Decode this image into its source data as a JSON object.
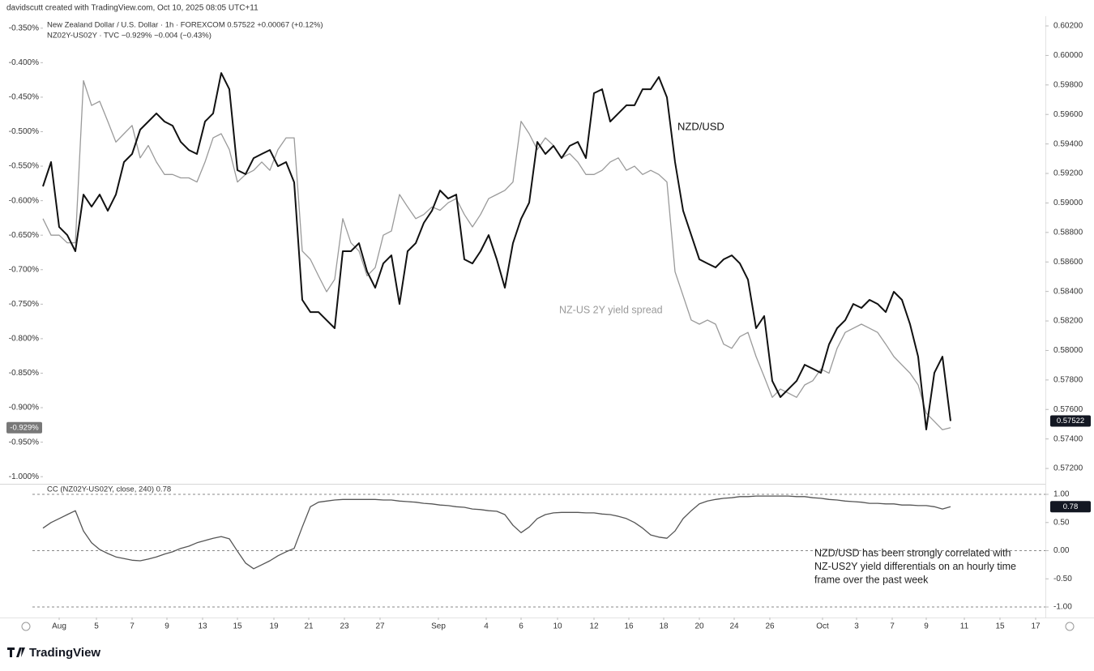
{
  "credit": "davidscutt created with TradingView.com, Oct 10, 2025 08:05 UTC+11",
  "brand": "TradingView",
  "chart_data": [
    {
      "type": "line",
      "legend_lines": [
        "New Zealand Dollar / U.S. Dollar · 1h · FOREXCOM  0.57522  +0.00067 (+0.12%)",
        "NZ02Y-US02Y · TVC  −0.929%  −0.004 (−0.43%)"
      ],
      "xlim": [
        -1.3,
        123.7
      ],
      "xticks": [
        {
          "value": 2,
          "label": "Aug"
        },
        {
          "value": 6.6,
          "label": "5"
        },
        {
          "value": 11,
          "label": "7"
        },
        {
          "value": 15.3,
          "label": "9"
        },
        {
          "value": 19.7,
          "label": "13"
        },
        {
          "value": 24,
          "label": "15"
        },
        {
          "value": 28.5,
          "label": "19"
        },
        {
          "value": 32.8,
          "label": "21"
        },
        {
          "value": 37.2,
          "label": "23"
        },
        {
          "value": 41.6,
          "label": "27"
        },
        {
          "value": 48.8,
          "label": "Sep"
        },
        {
          "value": 54.7,
          "label": "4"
        },
        {
          "value": 59,
          "label": "6"
        },
        {
          "value": 63.5,
          "label": "10"
        },
        {
          "value": 68,
          "label": "12"
        },
        {
          "value": 72.3,
          "label": "16"
        },
        {
          "value": 76.6,
          "label": "18"
        },
        {
          "value": 81,
          "label": "20"
        },
        {
          "value": 85.3,
          "label": "24"
        },
        {
          "value": 89.7,
          "label": "26"
        },
        {
          "value": 96.2,
          "label": "Oct"
        },
        {
          "value": 100.4,
          "label": "3"
        },
        {
          "value": 104.8,
          "label": "7"
        },
        {
          "value": 109,
          "label": "9"
        },
        {
          "value": 113.7,
          "label": "11"
        },
        {
          "value": 118.1,
          "label": "15"
        },
        {
          "value": 122.5,
          "label": "17"
        }
      ],
      "ylim": [
        -1.008,
        -0.335
      ],
      "yticks": [
        {
          "value": -0.35,
          "label": "-0.350%"
        },
        {
          "value": -0.4,
          "label": "-0.400%"
        },
        {
          "value": -0.45,
          "label": "-0.450%"
        },
        {
          "value": -0.5,
          "label": "-0.500%"
        },
        {
          "value": -0.55,
          "label": "-0.550%"
        },
        {
          "value": -0.6,
          "label": "-0.600%"
        },
        {
          "value": -0.65,
          "label": "-0.650%"
        },
        {
          "value": -0.7,
          "label": "-0.700%"
        },
        {
          "value": -0.75,
          "label": "-0.750%"
        },
        {
          "value": -0.8,
          "label": "-0.800%"
        },
        {
          "value": -0.85,
          "label": "-0.850%"
        },
        {
          "value": -0.9,
          "label": "-0.900%"
        },
        {
          "value": -0.95,
          "label": "-0.950%"
        },
        {
          "value": -1.0,
          "label": "-1.000%"
        }
      ],
      "y2lim": [
        0.57107,
        0.60255
      ],
      "y2ticks": [
        {
          "value": 0.602,
          "label": "0.60200"
        },
        {
          "value": 0.6,
          "label": "0.60000"
        },
        {
          "value": 0.598,
          "label": "0.59800"
        },
        {
          "value": 0.596,
          "label": "0.59600"
        },
        {
          "value": 0.594,
          "label": "0.59400"
        },
        {
          "value": 0.592,
          "label": "0.59200"
        },
        {
          "value": 0.59,
          "label": "0.59000"
        },
        {
          "value": 0.588,
          "label": "0.58800"
        },
        {
          "value": 0.586,
          "label": "0.58600"
        },
        {
          "value": 0.584,
          "label": "0.58400"
        },
        {
          "value": 0.582,
          "label": "0.58200"
        },
        {
          "value": 0.58,
          "label": "0.58000"
        },
        {
          "value": 0.578,
          "label": "0.57800"
        },
        {
          "value": 0.576,
          "label": "0.57600"
        },
        {
          "value": 0.574,
          "label": "0.57400"
        },
        {
          "value": 0.572,
          "label": "0.57200"
        }
      ],
      "series": [
        {
          "name": "NZ-US 2Y yield spread",
          "color": "#9a9a9a",
          "axis": "y",
          "last_label": "-0.929%",
          "values": [
            -0.626,
            -0.65,
            -0.65,
            -0.661,
            -0.661,
            -0.426,
            -0.462,
            -0.456,
            -0.485,
            -0.515,
            -0.503,
            -0.491,
            -0.538,
            -0.52,
            -0.544,
            -0.562,
            -0.562,
            -0.567,
            -0.567,
            -0.573,
            -0.544,
            -0.509,
            -0.503,
            -0.526,
            -0.573,
            -0.562,
            -0.556,
            -0.544,
            -0.556,
            -0.526,
            -0.509,
            -0.509,
            -0.673,
            -0.685,
            -0.709,
            -0.732,
            -0.714,
            -0.626,
            -0.661,
            -0.673,
            -0.709,
            -0.697,
            -0.65,
            -0.644,
            -0.591,
            -0.609,
            -0.626,
            -0.62,
            -0.609,
            -0.614,
            -0.603,
            -0.597,
            -0.62,
            -0.638,
            -0.62,
            -0.597,
            -0.591,
            -0.585,
            -0.573,
            -0.485,
            -0.503,
            -0.526,
            -0.509,
            -0.52,
            -0.538,
            -0.532,
            -0.544,
            -0.562,
            -0.562,
            -0.556,
            -0.544,
            -0.538,
            -0.556,
            -0.55,
            -0.562,
            -0.556,
            -0.562,
            -0.573,
            -0.703,
            -0.738,
            -0.773,
            -0.779,
            -0.773,
            -0.779,
            -0.808,
            -0.814,
            -0.797,
            -0.791,
            -0.826,
            -0.855,
            -0.885,
            -0.873,
            -0.879,
            -0.885,
            -0.867,
            -0.861,
            -0.844,
            -0.85,
            -0.814,
            -0.791,
            -0.785,
            -0.779,
            -0.785,
            -0.791,
            -0.808,
            -0.826,
            -0.838,
            -0.85,
            -0.867,
            -0.908,
            -0.92,
            -0.932,
            -0.929
          ]
        },
        {
          "name": "NZD/USD",
          "color": "#111111",
          "axis": "y2",
          "values": [
            0.59112,
            0.59277,
            0.58837,
            0.58782,
            0.58673,
            0.59057,
            0.58975,
            0.59057,
            0.58947,
            0.59057,
            0.59277,
            0.59332,
            0.59497,
            0.59552,
            0.59607,
            0.59552,
            0.59524,
            0.59414,
            0.59359,
            0.59332,
            0.59552,
            0.59607,
            0.59881,
            0.59771,
            0.59222,
            0.59195,
            0.59304,
            0.59332,
            0.59359,
            0.59249,
            0.59277,
            0.5914,
            0.58343,
            0.5826,
            0.5826,
            0.58205,
            0.58151,
            0.58673,
            0.58673,
            0.58727,
            0.58535,
            0.58425,
            0.5859,
            0.58645,
            0.58315,
            0.58673,
            0.58727,
            0.58865,
            0.58947,
            0.59085,
            0.5903,
            0.59057,
            0.58618,
            0.5859,
            0.58673,
            0.58782,
            0.58618,
            0.58425,
            0.58727,
            0.58892,
            0.59002,
            0.59414,
            0.59332,
            0.59387,
            0.59304,
            0.59387,
            0.59414,
            0.59304,
            0.59744,
            0.59771,
            0.59552,
            0.59607,
            0.59662,
            0.59662,
            0.59771,
            0.59771,
            0.59854,
            0.59716,
            0.59277,
            0.58947,
            0.58782,
            0.58618,
            0.5859,
            0.58563,
            0.58618,
            0.58645,
            0.5859,
            0.5848,
            0.58151,
            0.58233,
            0.57793,
            0.57684,
            0.57738,
            0.57793,
            0.57903,
            0.57876,
            0.57848,
            0.58041,
            0.58151,
            0.58205,
            0.58315,
            0.58288,
            0.58343,
            0.58315,
            0.5826,
            0.58398,
            0.58343,
            0.58178,
            0.57958,
            0.57464,
            0.57848,
            0.57958,
            0.57522
          ]
        }
      ]
    },
    {
      "type": "line",
      "title": "CC (NZ02Y-US02Y, close, 240)  0.78",
      "ylim": [
        -1.158,
        1.144
      ],
      "yticks": [
        {
          "value": 1,
          "label": "1.00"
        },
        {
          "value": 0.5,
          "label": "0.50"
        },
        {
          "value": 0,
          "label": "0.00"
        },
        {
          "value": -0.5,
          "label": "-0.50"
        },
        {
          "value": -1,
          "label": "-1.00"
        }
      ],
      "levels": [
        1,
        0,
        -1
      ],
      "annotation": [
        "NZD/USD has been strongly correlated with",
        "NZ-US2Y yield differentials on an hourly time",
        "frame over the past week"
      ],
      "series": [
        {
          "color": "#555555",
          "values": [
            0.4,
            0.5,
            0.57,
            0.64,
            0.71,
            0.35,
            0.14,
            0.02,
            -0.05,
            -0.11,
            -0.14,
            -0.17,
            -0.18,
            -0.15,
            -0.11,
            -0.06,
            -0.02,
            0.04,
            0.08,
            0.14,
            0.18,
            0.22,
            0.25,
            0.21,
            -0.01,
            -0.22,
            -0.32,
            -0.25,
            -0.18,
            -0.09,
            -0.02,
            0.04,
            0.42,
            0.78,
            0.86,
            0.88,
            0.9,
            0.91,
            0.91,
            0.91,
            0.91,
            0.91,
            0.9,
            0.9,
            0.88,
            0.87,
            0.86,
            0.84,
            0.83,
            0.81,
            0.8,
            0.78,
            0.77,
            0.74,
            0.73,
            0.71,
            0.7,
            0.64,
            0.45,
            0.32,
            0.42,
            0.57,
            0.64,
            0.67,
            0.68,
            0.68,
            0.68,
            0.67,
            0.67,
            0.65,
            0.64,
            0.61,
            0.57,
            0.5,
            0.4,
            0.28,
            0.24,
            0.22,
            0.35,
            0.57,
            0.71,
            0.83,
            0.88,
            0.91,
            0.93,
            0.94,
            0.96,
            0.96,
            0.97,
            0.97,
            0.97,
            0.97,
            0.97,
            0.96,
            0.96,
            0.94,
            0.93,
            0.91,
            0.9,
            0.88,
            0.87,
            0.86,
            0.84,
            0.84,
            0.83,
            0.83,
            0.81,
            0.81,
            0.8,
            0.8,
            0.78,
            0.74,
            0.78
          ]
        }
      ]
    }
  ]
}
